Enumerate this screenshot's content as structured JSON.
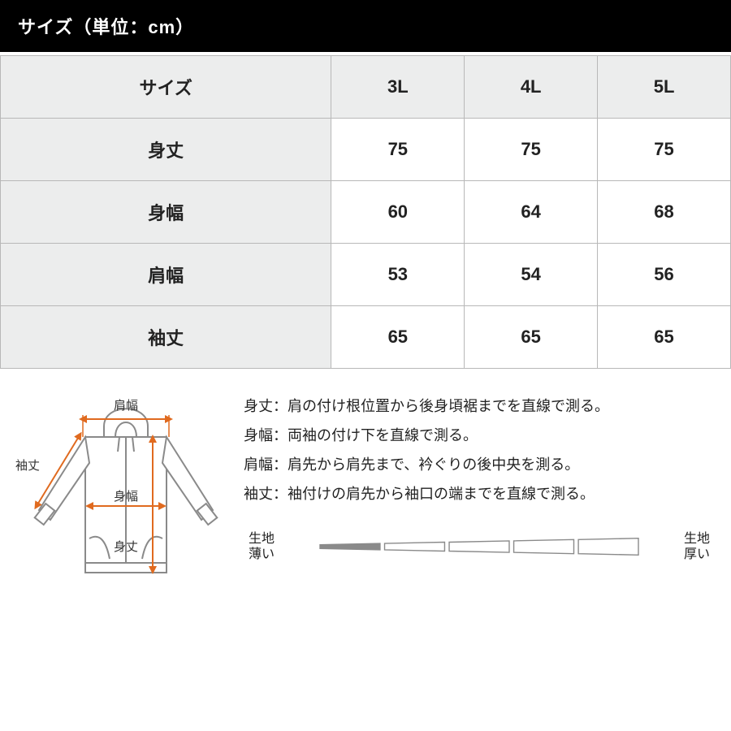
{
  "header": {
    "title": "サイズ（単位：cm）"
  },
  "table": {
    "columns": [
      "サイズ",
      "3L",
      "4L",
      "5L"
    ],
    "rows": [
      {
        "label": "身丈",
        "values": [
          "75",
          "75",
          "75"
        ]
      },
      {
        "label": "身幅",
        "values": [
          "60",
          "64",
          "68"
        ]
      },
      {
        "label": "肩幅",
        "values": [
          "53",
          "54",
          "56"
        ]
      },
      {
        "label": "袖丈",
        "values": [
          "65",
          "65",
          "65"
        ]
      }
    ],
    "header_bg": "#eceded",
    "row_header_bg": "#eceded",
    "cell_bg": "#ffffff",
    "border_color": "#b8b8b8",
    "font_size": 22
  },
  "diagram": {
    "labels": {
      "shoulder": "肩幅",
      "sleeve": "袖丈",
      "width": "身幅",
      "length": "身丈"
    },
    "garment_stroke": "#8a8a8a",
    "garment_fill": "#ffffff",
    "arrow_color": "#e06a1f",
    "label_color": "#333333",
    "label_fontsize": 15
  },
  "descriptions": {
    "line1": "身丈：肩の付け根位置から後身頃裾までを直線で測る。",
    "line2": "身幅：両袖の付け下を直線で測る。",
    "line3": "肩幅：肩先から肩先まで、衿ぐりの後中央を測る。",
    "line4": "袖丈：袖付けの肩先から袖口の端までを直線で測る。"
  },
  "thickness": {
    "left_label_1": "生地",
    "left_label_2": "薄い",
    "right_label_1": "生地",
    "right_label_2": "厚い",
    "segments": 5,
    "filled_index": 0,
    "fill_color": "#8a8a8a",
    "stroke_color": "#8a8a8a",
    "bg_color": "#ffffff"
  }
}
